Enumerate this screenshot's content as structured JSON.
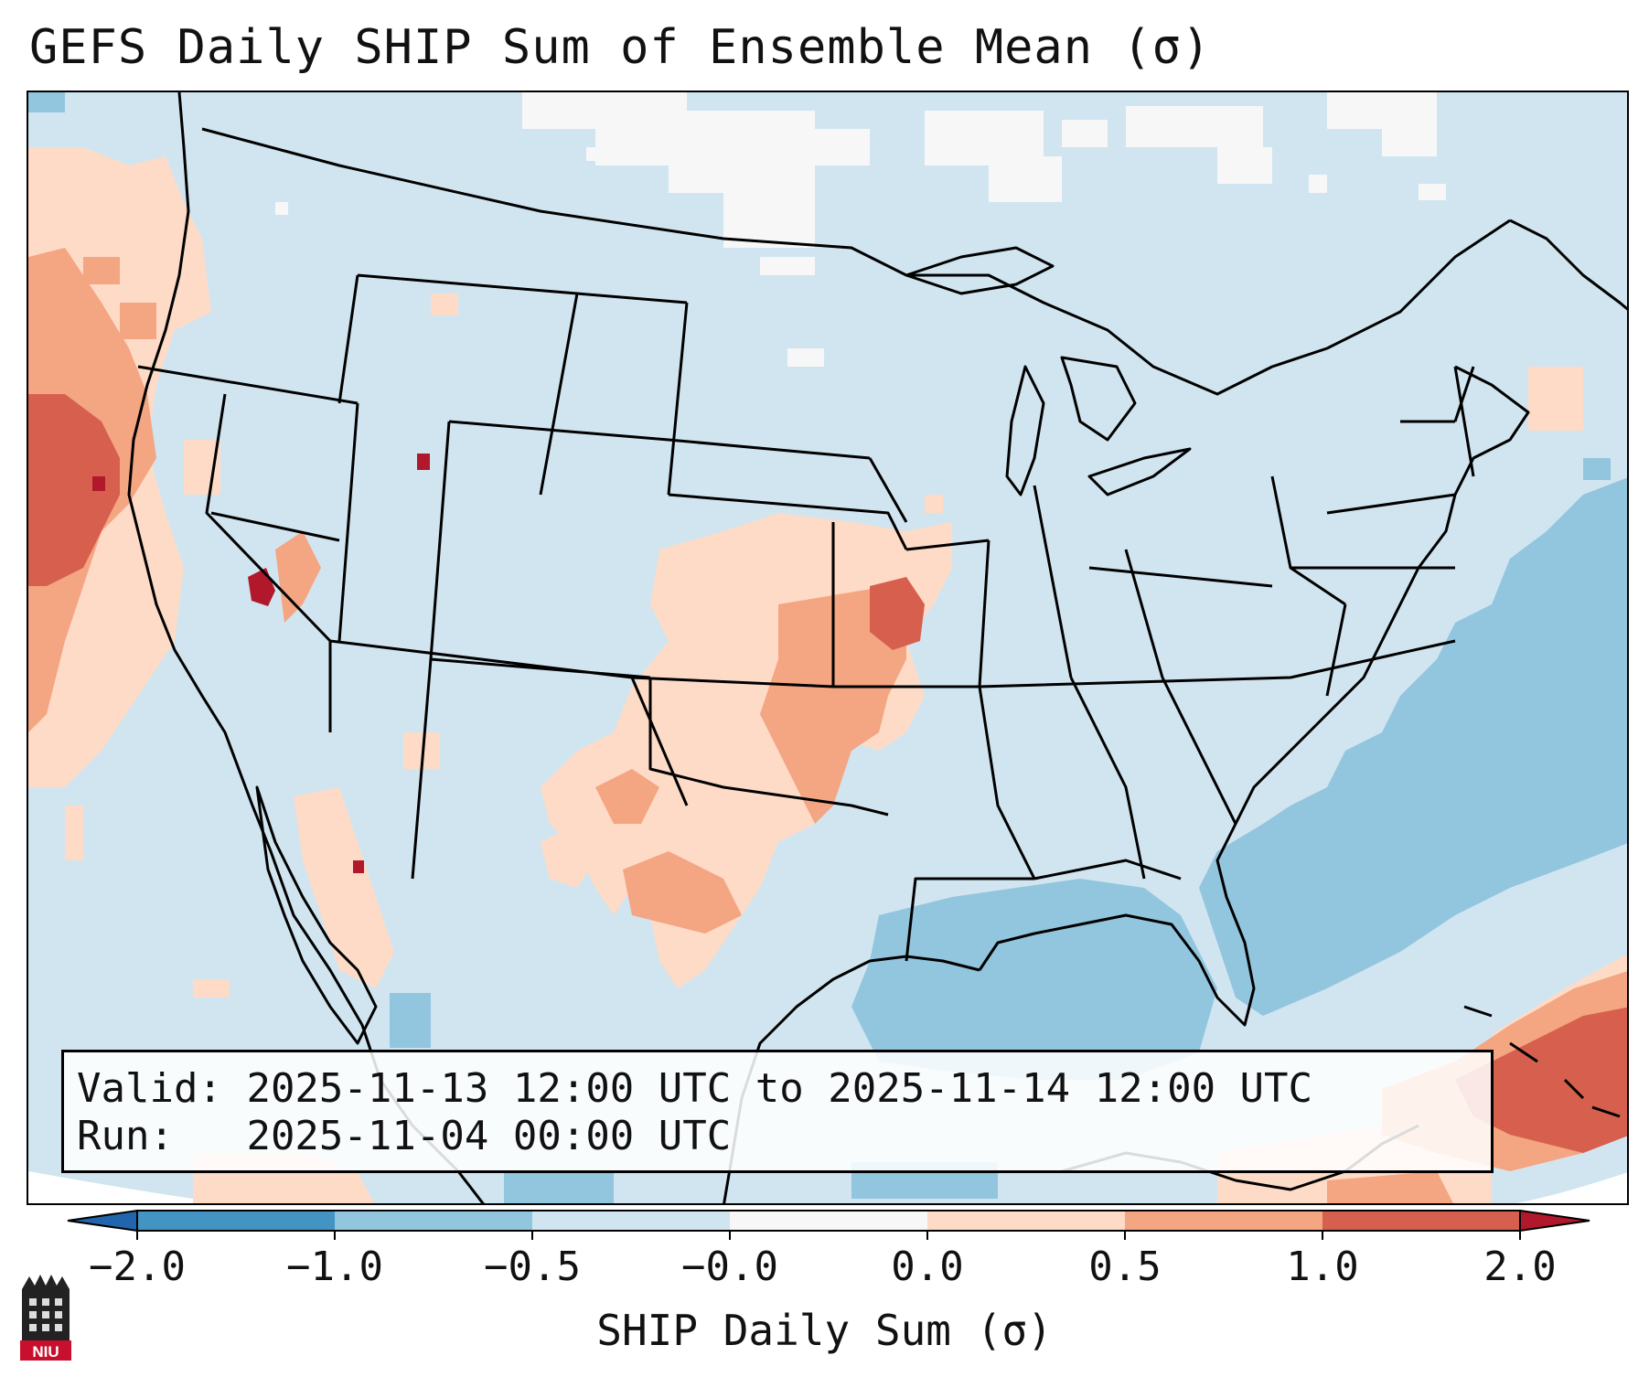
{
  "title": "GEFS Daily SHIP Sum of Ensemble Mean (σ)",
  "info": {
    "valid_label": "Valid:",
    "valid_value": "2025-11-13 12:00 UTC to 2025-11-14 12:00 UTC",
    "run_label": "Run:",
    "run_value": "2025-11-04 00:00 UTC"
  },
  "colorbar": {
    "label": "SHIP Daily Sum (σ)",
    "ticks": [
      "−2.0",
      "−1.0",
      "−0.5",
      "−0.0",
      "0.0",
      "0.5",
      "1.0",
      "2.0"
    ],
    "bins": [
      {
        "range": "< -2.0",
        "color": "#2166ac"
      },
      {
        "range": "-2.0 to -1.0",
        "color": "#4393c3"
      },
      {
        "range": "-1.0 to -0.5",
        "color": "#92c5de"
      },
      {
        "range": "-0.5 to -0.0",
        "color": "#d1e5f0"
      },
      {
        "range": "-0.0 to 0.0",
        "color": "#f7f7f7"
      },
      {
        "range": "0.0 to 0.5",
        "color": "#fddbc7"
      },
      {
        "range": "0.5 to 1.0",
        "color": "#f4a582"
      },
      {
        "range": "1.0 to 2.0",
        "color": "#d6604d"
      },
      {
        "range": "> 2.0",
        "color": "#b2182b"
      }
    ]
  },
  "logo": {
    "text": "NIU",
    "icon": "niu-castle-icon"
  }
}
